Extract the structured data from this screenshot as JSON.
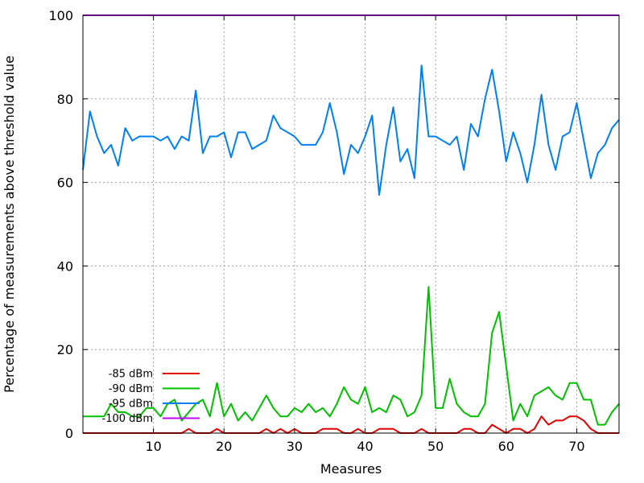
{
  "chart_data": {
    "type": "line",
    "title": "",
    "xlabel": "Measures",
    "ylabel": "Percentage of measurements above threshold value",
    "xlim": [
      0,
      76
    ],
    "ylim": [
      0,
      100
    ],
    "xticks": [
      10,
      20,
      30,
      40,
      50,
      60,
      70
    ],
    "yticks": [
      0,
      20,
      40,
      60,
      80,
      100
    ],
    "grid": true,
    "legend_position": "bottom-left",
    "x": [
      0,
      1,
      2,
      3,
      4,
      5,
      6,
      7,
      8,
      9,
      10,
      11,
      12,
      13,
      14,
      15,
      16,
      17,
      18,
      19,
      20,
      21,
      22,
      23,
      24,
      25,
      26,
      27,
      28,
      29,
      30,
      31,
      32,
      33,
      34,
      35,
      36,
      37,
      38,
      39,
      40,
      41,
      42,
      43,
      44,
      45,
      46,
      47,
      48,
      49,
      50,
      51,
      52,
      53,
      54,
      55,
      56,
      57,
      58,
      59,
      60,
      61,
      62,
      63,
      64,
      65,
      66,
      67,
      68,
      69,
      70,
      71,
      72,
      73,
      74,
      75,
      76
    ],
    "series": [
      {
        "name": "-85 dBm",
        "color": "#e00000",
        "values": [
          0,
          0,
          0,
          0,
          0,
          0,
          0,
          0,
          0,
          0,
          0,
          0,
          0,
          0,
          0,
          1,
          0,
          0,
          0,
          1,
          0,
          0,
          0,
          0,
          0,
          0,
          1,
          0,
          1,
          0,
          1,
          0,
          0,
          0,
          1,
          1,
          1,
          0,
          0,
          1,
          0,
          0,
          1,
          1,
          1,
          0,
          0,
          0,
          1,
          0,
          0,
          0,
          0,
          0,
          1,
          1,
          0,
          0,
          2,
          1,
          0,
          1,
          1,
          0,
          1,
          4,
          2,
          3,
          3,
          4,
          4,
          3,
          1,
          0,
          0,
          0,
          0
        ]
      },
      {
        "name": "-90 dBm",
        "color": "#00c000",
        "values": [
          4,
          4,
          4,
          4,
          7,
          5,
          5,
          4,
          4,
          6,
          6,
          4,
          7,
          8,
          3,
          5,
          7,
          8,
          4,
          12,
          4,
          7,
          3,
          5,
          3,
          6,
          9,
          6,
          4,
          4,
          6,
          5,
          7,
          5,
          6,
          4,
          7,
          11,
          8,
          7,
          11,
          5,
          6,
          5,
          9,
          8,
          4,
          5,
          9,
          35,
          6,
          6,
          13,
          7,
          5,
          4,
          4,
          7,
          24,
          29,
          16,
          3,
          7,
          4,
          9,
          10,
          11,
          9,
          8,
          12,
          12,
          8,
          8,
          2,
          2,
          5,
          7
        ]
      },
      {
        "name": "-95 dBm",
        "color": "#0080f0",
        "values": [
          63,
          77,
          71,
          67,
          69,
          64,
          73,
          70,
          71,
          71,
          71,
          70,
          71,
          68,
          71,
          70,
          82,
          67,
          71,
          71,
          72,
          66,
          72,
          72,
          68,
          69,
          70,
          76,
          73,
          72,
          71,
          69,
          69,
          69,
          72,
          79,
          72,
          62,
          69,
          67,
          71,
          76,
          57,
          69,
          78,
          65,
          68,
          61,
          88,
          71,
          71,
          70,
          69,
          71,
          63,
          74,
          71,
          80,
          87,
          77,
          65,
          72,
          67,
          60,
          69,
          81,
          69,
          63,
          71,
          72,
          79,
          70,
          61,
          67,
          69,
          73,
          75
        ]
      },
      {
        "name": "-100 dBm",
        "color": "#c000ff",
        "values": [
          100,
          100,
          100,
          100,
          100,
          100,
          100,
          100,
          100,
          100,
          100,
          100,
          100,
          100,
          100,
          100,
          100,
          100,
          100,
          100,
          100,
          100,
          100,
          100,
          100,
          100,
          100,
          100,
          100,
          100,
          100,
          100,
          100,
          100,
          100,
          100,
          100,
          100,
          100,
          100,
          100,
          100,
          100,
          100,
          100,
          100,
          100,
          100,
          100,
          100,
          100,
          100,
          100,
          100,
          100,
          100,
          100,
          100,
          100,
          100,
          100,
          100,
          100,
          100,
          100,
          100,
          100,
          100,
          100,
          100,
          100,
          100,
          100,
          100,
          100,
          100,
          100
        ]
      }
    ]
  }
}
